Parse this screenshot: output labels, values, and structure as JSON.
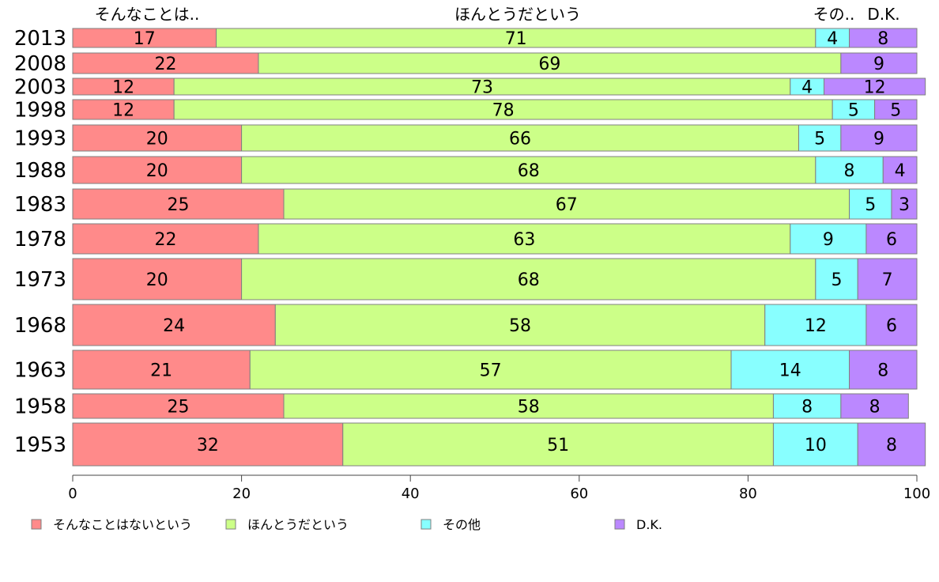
{
  "chart_data": {
    "type": "bar",
    "orientation": "horizontal",
    "stacked": true,
    "categories": [
      "2013",
      "2008",
      "2003",
      "1998",
      "1993",
      "1988",
      "1983",
      "1978",
      "1973",
      "1968",
      "1963",
      "1958",
      "1953"
    ],
    "series": [
      {
        "name": "そんなことはないという",
        "short_name": "そんなことは..",
        "color": "#ff8a8a",
        "values": [
          17,
          22,
          12,
          12,
          20,
          20,
          25,
          22,
          20,
          24,
          21,
          25,
          32
        ]
      },
      {
        "name": "ほんとうだという",
        "short_name": "ほんとうだという",
        "color": "#ccff88",
        "values": [
          71,
          69,
          73,
          78,
          66,
          68,
          67,
          63,
          68,
          58,
          57,
          58,
          51
        ]
      },
      {
        "name": "その他",
        "short_name": "その..",
        "color": "#88ffff",
        "values": [
          4,
          null,
          4,
          5,
          5,
          8,
          5,
          9,
          5,
          12,
          14,
          8,
          10
        ]
      },
      {
        "name": "D.K.",
        "short_name": "D.K.",
        "color": "#bb88ff",
        "values": [
          8,
          9,
          12,
          5,
          9,
          4,
          3,
          6,
          7,
          6,
          8,
          8,
          8
        ]
      }
    ],
    "xlim": [
      0,
      100
    ],
    "x_ticks": [
      0,
      20,
      40,
      60,
      80,
      100
    ],
    "grid": false,
    "legend_position": "bottom"
  }
}
